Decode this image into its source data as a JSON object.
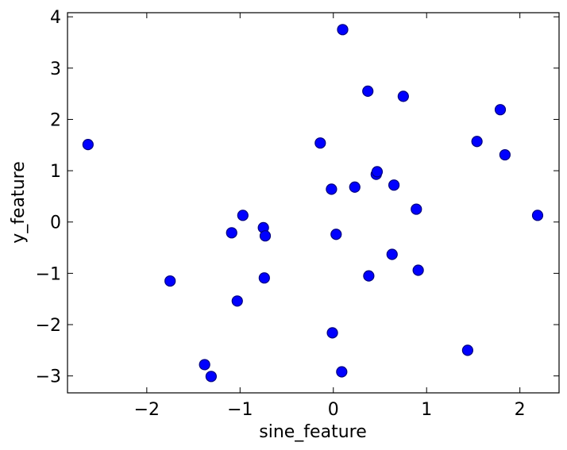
{
  "chart_data": {
    "type": "scatter",
    "title": "",
    "xlabel": "sine_feature",
    "ylabel": "y_feature",
    "xlim": [
      -2.85,
      2.42
    ],
    "ylim": [
      -3.33,
      4.08
    ],
    "xticks": [
      -2,
      -1,
      0,
      1,
      2
    ],
    "yticks": [
      -3,
      -2,
      -1,
      0,
      1,
      2,
      3,
      4
    ],
    "xtick_labels": [
      "−2",
      "−1",
      "0",
      "1",
      "2"
    ],
    "ytick_labels": [
      "−3",
      "−2",
      "−1",
      "0",
      "1",
      "2",
      "3",
      "4"
    ],
    "grid": false,
    "marker_color": "#0000ff",
    "marker_edge_color": "#000080",
    "points": [
      {
        "x": -2.63,
        "y": 1.51
      },
      {
        "x": -1.75,
        "y": -1.15
      },
      {
        "x": -1.38,
        "y": -2.78
      },
      {
        "x": -1.31,
        "y": -3.01
      },
      {
        "x": -1.09,
        "y": -0.21
      },
      {
        "x": -1.03,
        "y": -1.54
      },
      {
        "x": -0.97,
        "y": 0.13
      },
      {
        "x": -0.75,
        "y": -0.11
      },
      {
        "x": -0.73,
        "y": -0.27
      },
      {
        "x": -0.74,
        "y": -1.09
      },
      {
        "x": -0.14,
        "y": 1.54
      },
      {
        "x": -0.02,
        "y": 0.64
      },
      {
        "x": -0.01,
        "y": -2.16
      },
      {
        "x": 0.03,
        "y": -0.24
      },
      {
        "x": 0.09,
        "y": -2.92
      },
      {
        "x": 0.1,
        "y": 3.75
      },
      {
        "x": 0.23,
        "y": 0.68
      },
      {
        "x": 0.37,
        "y": 2.55
      },
      {
        "x": 0.38,
        "y": -1.05
      },
      {
        "x": 0.46,
        "y": 0.93
      },
      {
        "x": 0.47,
        "y": 0.98
      },
      {
        "x": 0.63,
        "y": -0.63
      },
      {
        "x": 0.65,
        "y": 0.72
      },
      {
        "x": 0.75,
        "y": 2.45
      },
      {
        "x": 0.89,
        "y": 0.25
      },
      {
        "x": 0.91,
        "y": -0.94
      },
      {
        "x": 1.44,
        "y": -2.5
      },
      {
        "x": 1.54,
        "y": 1.57
      },
      {
        "x": 1.79,
        "y": 2.19
      },
      {
        "x": 1.84,
        "y": 1.31
      },
      {
        "x": 2.19,
        "y": 0.13
      }
    ]
  }
}
